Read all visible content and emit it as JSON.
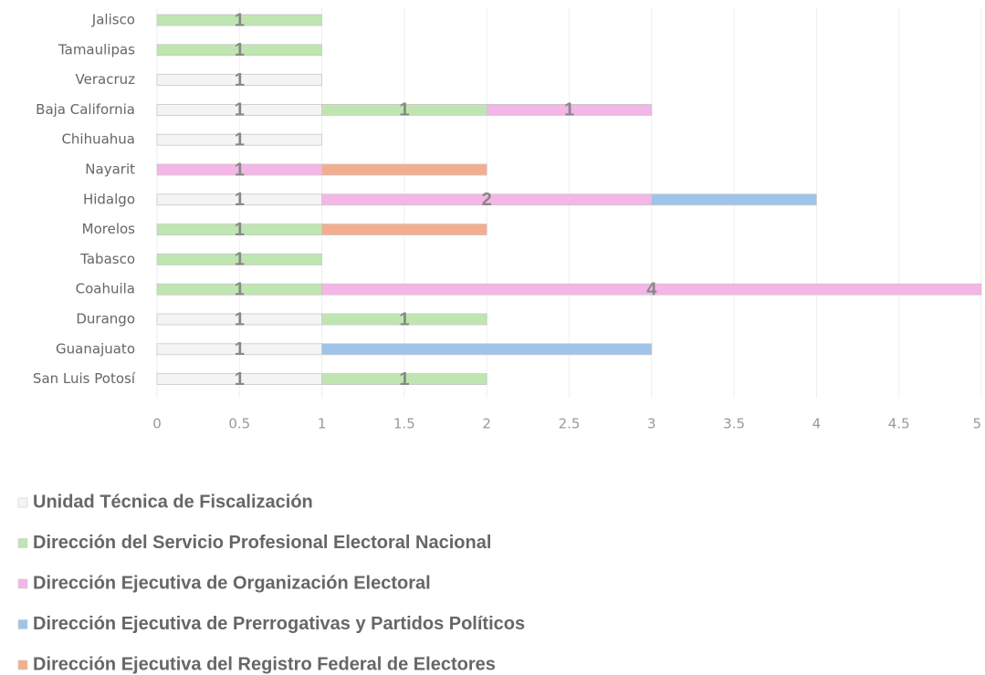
{
  "chart_data": {
    "type": "stacked-barh",
    "categories": [
      "Jalisco",
      "Tamaulipas",
      "Veracruz",
      "Baja California",
      "Chihuahua",
      "Nayarit",
      "Hidalgo",
      "Morelos",
      "Tabasco",
      "Coahuila",
      "Durango",
      "Guanajuato",
      "San Luis Potosí"
    ],
    "series": [
      {
        "name": "Unidad Técnica de Fiscalización",
        "color": "#f4f4f6",
        "data_labels": true,
        "values": [
          null,
          null,
          1,
          1,
          1,
          null,
          1,
          null,
          null,
          null,
          1,
          1,
          1
        ]
      },
      {
        "name": "Dirección del Servicio Profesional Electoral Nacional",
        "color": "#bfe6b0",
        "data_labels": true,
        "values": [
          1,
          1,
          null,
          1,
          null,
          null,
          null,
          1,
          1,
          1,
          1,
          null,
          1
        ]
      },
      {
        "name": "Dirección Ejecutiva de Organización Electoral",
        "color": "#f4b6e6",
        "data_labels": true,
        "values": [
          null,
          null,
          null,
          1,
          null,
          1,
          2,
          null,
          null,
          4,
          null,
          null,
          null
        ]
      },
      {
        "name": "Dirección Ejecutiva de Prerrogativas y Partidos Políticos",
        "color": "#9ec4ec",
        "data_labels": false,
        "values": [
          null,
          null,
          null,
          null,
          null,
          null,
          1,
          null,
          null,
          null,
          null,
          2,
          null
        ]
      },
      {
        "name": "Dirección Ejecutiva del Registro Federal de Electores",
        "color": "#f4ae8e",
        "data_labels": false,
        "values": [
          null,
          null,
          null,
          null,
          null,
          1,
          null,
          1,
          null,
          null,
          null,
          null,
          null
        ]
      }
    ],
    "xlim": [
      0,
      5
    ],
    "xticks": [
      0,
      0.5,
      1,
      1.5,
      2,
      2.5,
      3,
      3.5,
      4,
      4.5,
      5
    ],
    "grid": true,
    "legend": "bottom"
  }
}
